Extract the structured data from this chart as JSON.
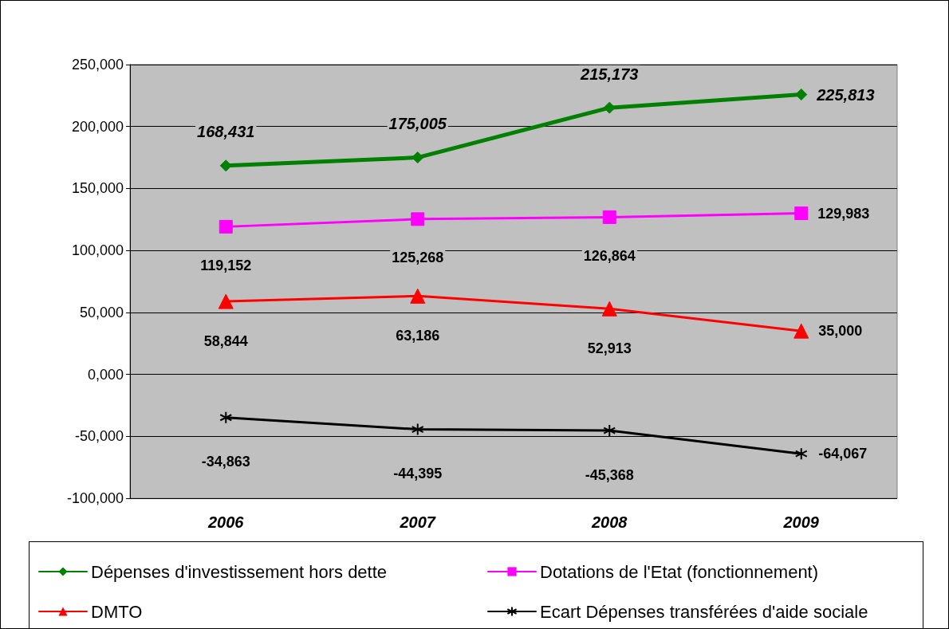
{
  "chart_data": {
    "type": "line",
    "categories": [
      "2006",
      "2007",
      "2008",
      "2009"
    ],
    "ylim": [
      -100000,
      250000
    ],
    "yticks": [
      {
        "value": -100000,
        "label": "-100,000"
      },
      {
        "value": -50000,
        "label": "-50,000"
      },
      {
        "value": 0,
        "label": "0,000"
      },
      {
        "value": 50000,
        "label": "50,000"
      },
      {
        "value": 100000,
        "label": "100,000"
      },
      {
        "value": 150000,
        "label": "150,000"
      },
      {
        "value": 200000,
        "label": "200,000"
      },
      {
        "value": 250000,
        "label": "250,000"
      }
    ],
    "grid": "y",
    "legend": "bottom",
    "line_style": "solid",
    "series": [
      {
        "name": "Dépenses d'investissement hors dette",
        "color": "#008000",
        "marker": "diamond",
        "values": [
          168431,
          175005,
          215173,
          225813
        ],
        "value_labels": [
          "168,431",
          "175,005",
          "215,173",
          "225,813"
        ]
      },
      {
        "name": "Dotations de l'Etat (fonctionnement)",
        "color": "#ff00ff",
        "marker": "square",
        "values": [
          119152,
          125268,
          126864,
          129983
        ],
        "value_labels": [
          "119,152",
          "125,268",
          "126,864",
          "129,983"
        ]
      },
      {
        "name": "DMTO",
        "color": "#ff0000",
        "marker": "triangle",
        "values": [
          58844,
          63186,
          52913,
          35000
        ],
        "value_labels": [
          "58,844",
          "63,186",
          "52,913",
          "35,000"
        ]
      },
      {
        "name": "Ecart Dépenses transférées d'aide sociale",
        "color": "#000000",
        "marker": "cross",
        "values": [
          -34863,
          -44395,
          -45368,
          -64067
        ],
        "value_labels": [
          "-34,863",
          "-44,395",
          "-45,368",
          "-64,067"
        ]
      }
    ]
  }
}
